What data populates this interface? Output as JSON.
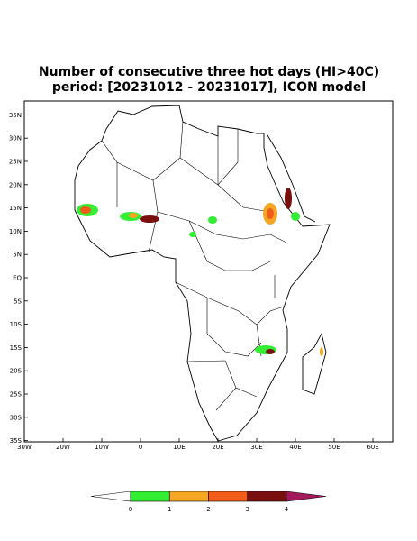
{
  "header": {
    "title_lines": [
      "Number of consecutive three hot days (HI>40C)",
      "period: [20231012 - 20231017], ICON model"
    ]
  },
  "map": {
    "lat_ticks": [
      {
        "value": 35,
        "label": "35N"
      },
      {
        "value": 30,
        "label": "30N"
      },
      {
        "value": 25,
        "label": "25N"
      },
      {
        "value": 20,
        "label": "20N"
      },
      {
        "value": 15,
        "label": "15N"
      },
      {
        "value": 10,
        "label": "10N"
      },
      {
        "value": 5,
        "label": "5N"
      },
      {
        "value": 0,
        "label": "EQ"
      },
      {
        "value": -5,
        "label": "5S"
      },
      {
        "value": -10,
        "label": "10S"
      },
      {
        "value": -15,
        "label": "15S"
      },
      {
        "value": -20,
        "label": "20S"
      },
      {
        "value": -25,
        "label": "25S"
      },
      {
        "value": -30,
        "label": "30S"
      },
      {
        "value": -35,
        "label": "35S"
      }
    ],
    "lon_ticks": [
      {
        "value": -30,
        "label": "30W"
      },
      {
        "value": -20,
        "label": "20W"
      },
      {
        "value": -10,
        "label": "10W"
      },
      {
        "value": 0,
        "label": "0"
      },
      {
        "value": 10,
        "label": "10E"
      },
      {
        "value": 20,
        "label": "20E"
      },
      {
        "value": 30,
        "label": "30E"
      },
      {
        "value": 40,
        "label": "40E"
      },
      {
        "value": 50,
        "label": "50E"
      },
      {
        "value": 60,
        "label": "60E"
      }
    ]
  },
  "colorbar": {
    "bounds": [
      0,
      1,
      2,
      3,
      4
    ],
    "colors": [
      "#ffffff",
      "#33ee33",
      "#f5a623",
      "#f25c1b",
      "#7a0f0f",
      "#a3195b"
    ]
  }
}
